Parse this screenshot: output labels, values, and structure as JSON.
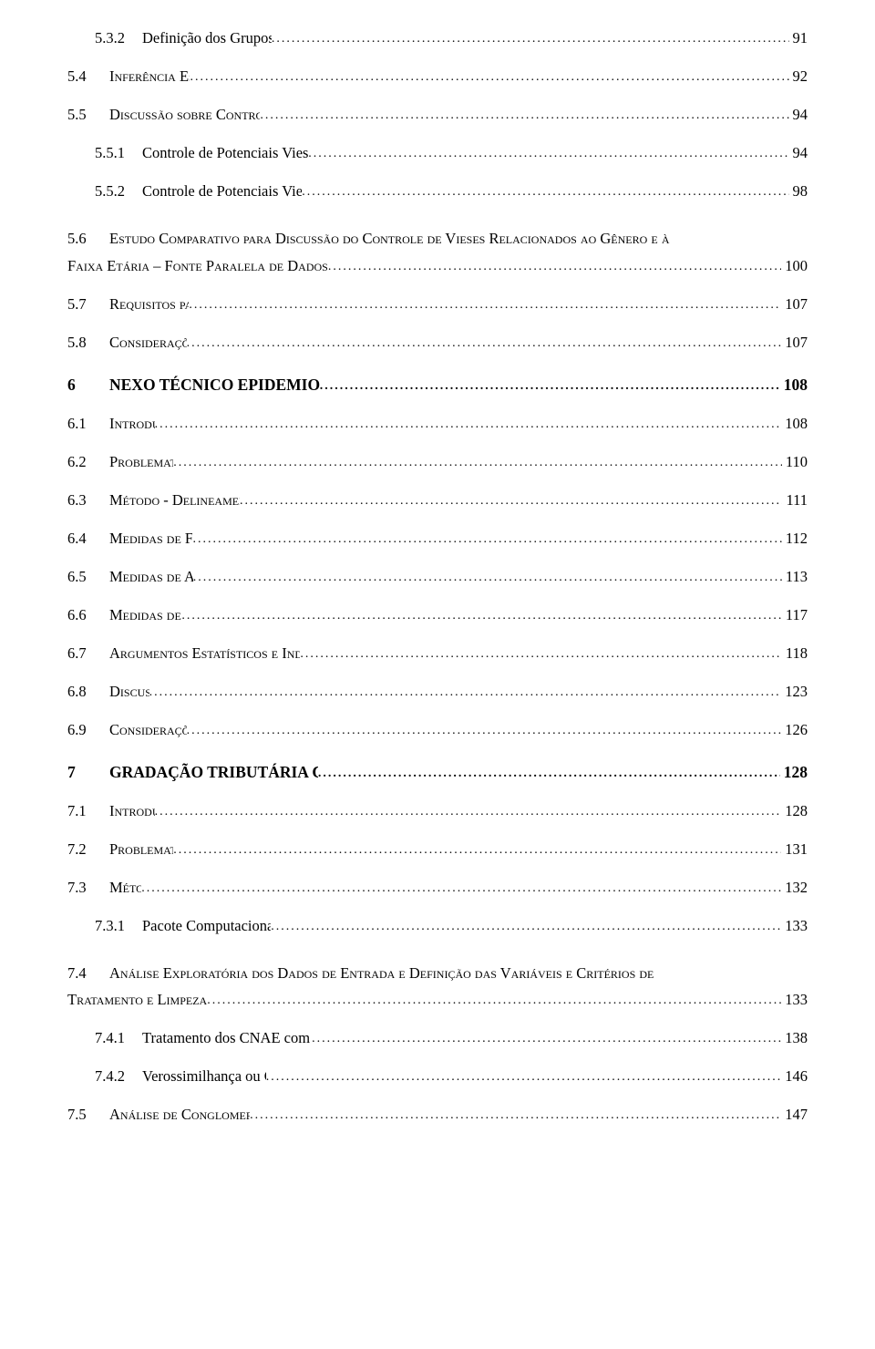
{
  "typography": {
    "font_family": "Times New Roman",
    "level0_fontsize_pt": 13,
    "level1_fontsize_pt": 12,
    "level2_fontsize_pt": 12,
    "color": "#000000",
    "background": "#ffffff"
  },
  "entries": [
    {
      "level": 2,
      "num": "5.3.2",
      "title": "Definição dos Grupos (Exposto e Controle)",
      "page": "91",
      "first": true
    },
    {
      "level": 1,
      "num": "5.4",
      "title": "Inferência Estatística",
      "page": "92"
    },
    {
      "level": 1,
      "num": "5.5",
      "title": "Discussão sobre Controle de Potenciais Vieses",
      "page": "94"
    },
    {
      "level": 2,
      "num": "5.5.1",
      "title": "Controle de Potenciais Vieses Populacionais (Denominador)",
      "page": "94"
    },
    {
      "level": 2,
      "num": "5.5.2",
      "title": "Controle de Potenciais Vieses de Casuística (Numerador)",
      "page": "98"
    },
    {
      "level": "1wrap",
      "num": "5.6",
      "line1": "Estudo Comparativo para Discussão do Controle de Vieses Relacionados ao Gênero e à",
      "line2": "Faixa Etária – Fonte Paralela de Dados",
      "page": "100"
    },
    {
      "level": 1,
      "num": "5.7",
      "title": "Requisitos para NTEP",
      "page": "107"
    },
    {
      "level": 1,
      "num": "5.8",
      "title": "Considerações Finais",
      "page": "107"
    },
    {
      "level": 0,
      "num": "6",
      "title": "NEXO TÉCNICO EPIDEMIOLÓGICO PREVIDENCIÁRIO – NTEP",
      "page": "108"
    },
    {
      "level": 1,
      "num": "6.1",
      "title": "Introdução",
      "page": "108"
    },
    {
      "level": 1,
      "num": "6.2",
      "title": "Problematização",
      "page": "110"
    },
    {
      "level": 1,
      "num": "6.3",
      "title": "Método - Delineamento Epidemiológico",
      "page": "111"
    },
    {
      "level": 1,
      "num": "6.4",
      "title": "Medidas de Freqüência",
      "page": "112"
    },
    {
      "level": 1,
      "num": "6.5",
      "title": "Medidas de Associação",
      "page": "113"
    },
    {
      "level": 1,
      "num": "6.6",
      "title": "Medidas de Impacto",
      "page": "117"
    },
    {
      "level": 1,
      "num": "6.7",
      "title": "Argumentos Estatísticos e Indicadores Epidemiológicos do NTEP.",
      "page": "118"
    },
    {
      "level": 1,
      "num": "6.8",
      "title": "Discussão",
      "page": "123"
    },
    {
      "level": 1,
      "num": "6.9",
      "title": "Considerações Finais",
      "page": "126"
    },
    {
      "level": 0,
      "num": "7",
      "title": "GRADAÇÃO TRIBUTÁRIA CONTÍNUA DOS RISCOS POR CNAE",
      "page": "128"
    },
    {
      "level": 1,
      "num": "7.1",
      "title": "Introdução",
      "page": "128"
    },
    {
      "level": 1,
      "num": "7.2",
      "title": "Problematização",
      "page": "131"
    },
    {
      "level": 1,
      "num": "7.3",
      "title": "Método",
      "page": "132"
    },
    {
      "level": 2,
      "num": "7.3.1",
      "title": "Pacote Computacional para Conglomeração",
      "page": "133"
    },
    {
      "level": "1wrap",
      "num": "7.4",
      "line1": "Análise Exploratória dos Dados de Entrada e Definição das Variáveis e Critérios de",
      "line2": "Tratamento e Limpeza",
      "page": "133"
    },
    {
      "level": 2,
      "num": "7.4.1",
      "title": "Tratamento dos CNAE com Registros Discrepantes e Inválidos",
      "page": "138"
    },
    {
      "level": 2,
      "num": "7.4.2",
      "title": "Verossimilhança ou Critério de Parecença",
      "page": "146"
    },
    {
      "level": 1,
      "num": "7.5",
      "title": "Análise de Conglomerados (clusterização)",
      "page": "147"
    }
  ]
}
